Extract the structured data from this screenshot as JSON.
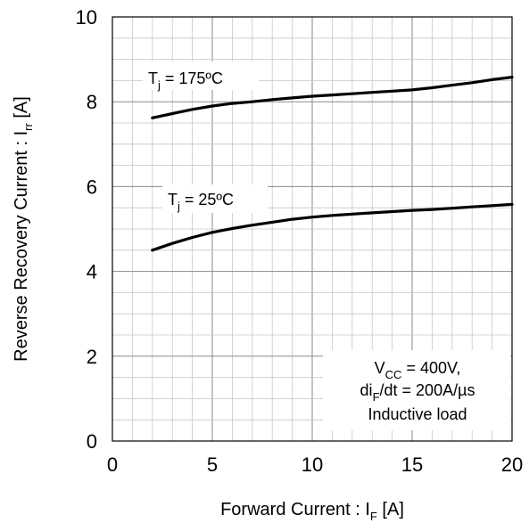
{
  "chart_data": {
    "type": "line",
    "xlabel": {
      "main": "Forward Current : I",
      "sub": "F",
      "unit": " [A]"
    },
    "ylabel": {
      "main": "Reverse Recovery Current : I",
      "sub": "rr",
      "unit": "  [A]"
    },
    "xlim": [
      0,
      20
    ],
    "ylim": [
      0,
      10
    ],
    "x_ticks": [
      "0",
      "5",
      "10",
      "15",
      "20"
    ],
    "y_ticks": [
      "0",
      "2",
      "4",
      "6",
      "8",
      "10"
    ],
    "grid": true,
    "series": [
      {
        "label_main": "T",
        "label_sub": "j",
        "label_rest": " = 175ºC",
        "x": [
          2,
          3,
          4,
          5,
          6,
          7,
          8,
          9,
          10,
          11,
          12,
          13,
          14,
          15,
          16,
          17,
          18,
          19,
          20
        ],
        "y": [
          7.62,
          7.72,
          7.82,
          7.9,
          7.96,
          8.0,
          8.05,
          8.09,
          8.13,
          8.16,
          8.19,
          8.22,
          8.25,
          8.28,
          8.33,
          8.39,
          8.45,
          8.52,
          8.58
        ]
      },
      {
        "label_main": "T",
        "label_sub": "j",
        "label_rest": " = 25ºC",
        "x": [
          2,
          3,
          4,
          5,
          6,
          7,
          8,
          9,
          10,
          11,
          12,
          13,
          14,
          15,
          16,
          17,
          18,
          19,
          20
        ],
        "y": [
          4.5,
          4.66,
          4.8,
          4.92,
          5.01,
          5.09,
          5.16,
          5.23,
          5.28,
          5.32,
          5.35,
          5.38,
          5.41,
          5.44,
          5.46,
          5.49,
          5.52,
          5.55,
          5.58
        ]
      }
    ],
    "conditions": {
      "line1_main": "V",
      "line1_sub": "CC",
      "line1_rest": " = 400V,",
      "line2_main": "di",
      "line2_sub": "F",
      "line2_rest": "/dt = 200A/µs",
      "line3": "Inductive load"
    }
  }
}
